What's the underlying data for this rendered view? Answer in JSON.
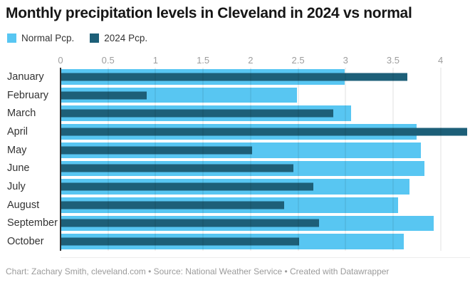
{
  "title": "Monthly precipitation levels in Cleveland in 2024 vs normal",
  "legend": [
    {
      "label": "Normal Pcp.",
      "color": "#58C6F2"
    },
    {
      "label": "2024 Pcp.",
      "color": "#1D5F78"
    }
  ],
  "footer": "Chart: Zachary Smith, cleveland.com • Source: National Weather Service • Created with Datawrapper",
  "colors": {
    "normal_bar": "#58C6F2",
    "current_bar": "#1D5F78",
    "tick_label": "#9d9d9d",
    "category_label": "#333333",
    "zero_axis": "#2e2e2e"
  },
  "chart_data": {
    "type": "bar",
    "orientation": "horizontal",
    "title": "Monthly precipitation levels in Cleveland in 2024 vs normal",
    "categories": [
      "January",
      "February",
      "March",
      "April",
      "May",
      "June",
      "July",
      "August",
      "September",
      "October"
    ],
    "series": [
      {
        "name": "Normal Pcp.",
        "color": "#58C6F2",
        "values": [
          2.99,
          2.49,
          3.06,
          3.75,
          3.79,
          3.83,
          3.67,
          3.55,
          3.93,
          3.61
        ]
      },
      {
        "name": "2024 Pcp.",
        "color": "#1D5F78",
        "values": [
          3.65,
          0.91,
          2.87,
          4.28,
          2.02,
          2.45,
          2.66,
          2.35,
          2.72,
          2.51
        ]
      }
    ],
    "xlabel": "",
    "ylabel": "",
    "xticks": [
      0,
      0.5,
      1,
      1.5,
      2,
      2.5,
      3,
      3.5,
      4
    ],
    "xlim": [
      0,
      4.31
    ],
    "grid": "vertical",
    "legend_position": "top-left",
    "units": "inches"
  }
}
